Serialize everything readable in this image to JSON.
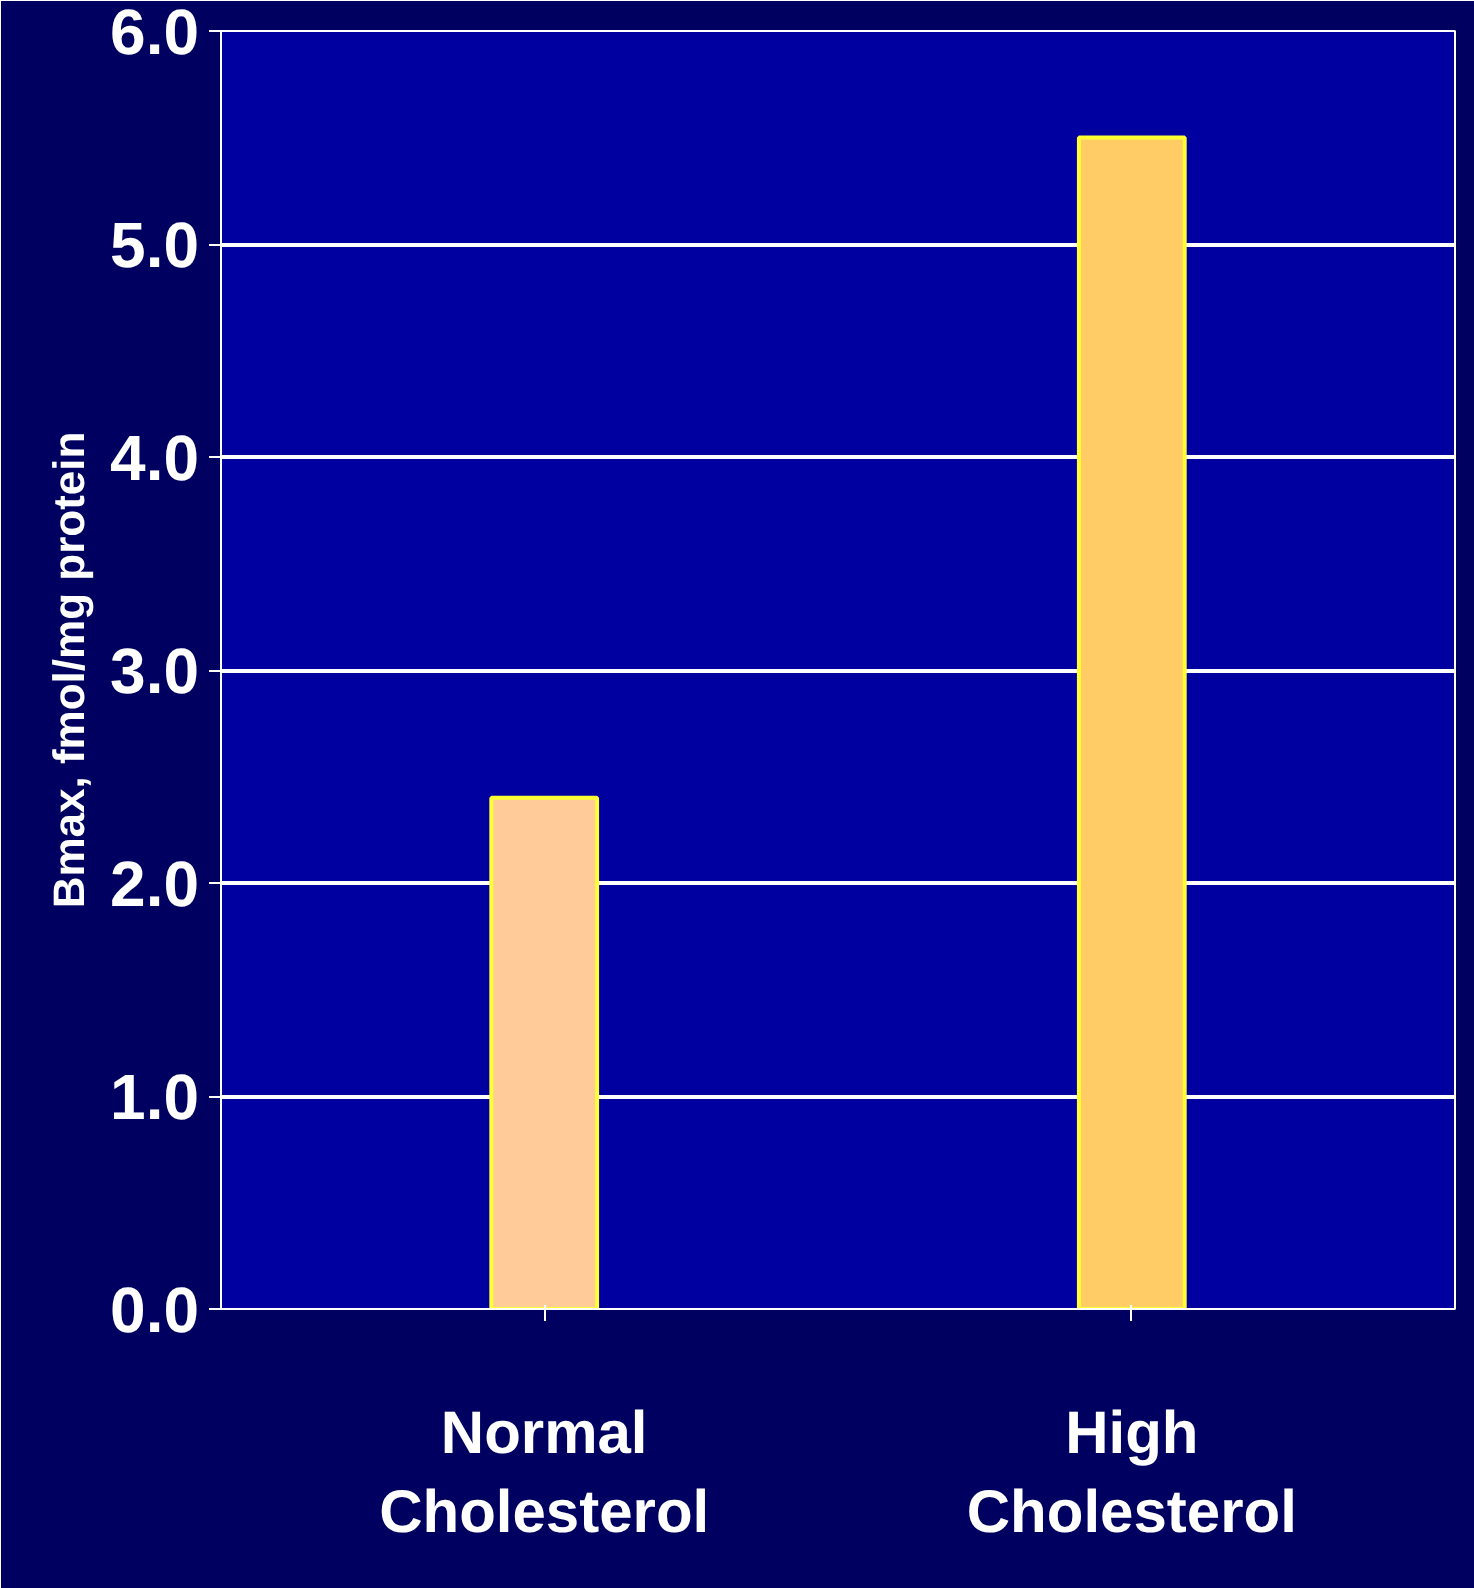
{
  "chart_data": {
    "type": "bar",
    "ylabel": "Bmax, fmol/mg protein",
    "categories": [
      "Normal\nCholesterol",
      "High\nCholesterol"
    ],
    "values": [
      2.4,
      5.5
    ],
    "colors": [
      "#ffcc99",
      "#ffcc66"
    ],
    "ylim": [
      0,
      6
    ],
    "yticks": [
      {
        "value": 0,
        "label": "0.0"
      },
      {
        "value": 1,
        "label": "1.0"
      },
      {
        "value": 2,
        "label": "2.0"
      },
      {
        "value": 3,
        "label": "3.0"
      },
      {
        "value": 4,
        "label": "4.0"
      },
      {
        "value": 5,
        "label": "5.0"
      },
      {
        "value": 6,
        "label": "6.0"
      }
    ],
    "grid": "y"
  }
}
